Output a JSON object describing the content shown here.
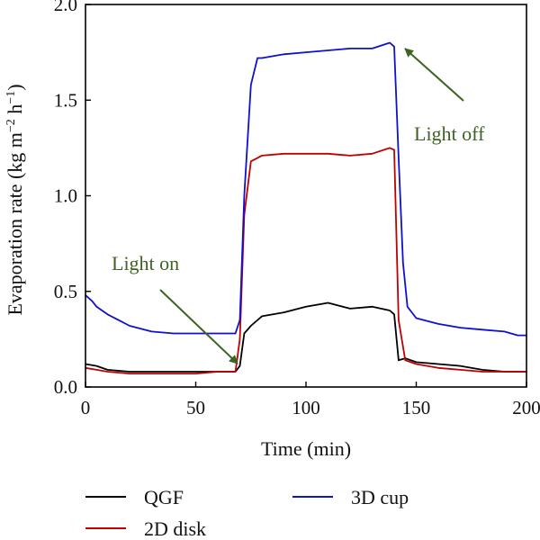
{
  "chart_data": {
    "type": "line",
    "title": "",
    "xlabel": "Time (min)",
    "ylabel": {
      "prefix": "Evaporation rate (kg m",
      "sup1": "−2",
      "mid": " h",
      "sup2": "−1",
      "suffix": ")"
    },
    "xlim": [
      0,
      200
    ],
    "ylim": [
      0.0,
      2.0
    ],
    "xticks": [
      0,
      50,
      100,
      150,
      200
    ],
    "yticks": [
      0.0,
      0.5,
      1.0,
      1.5,
      2.0
    ],
    "xtick_labels": [
      "0",
      "50",
      "100",
      "150",
      "200"
    ],
    "ytick_labels": [
      "0.0",
      "0.5",
      "1.0",
      "1.5",
      "2.0"
    ],
    "grid": false,
    "legend_position": "bottom",
    "annotations": [
      {
        "text": "Light on",
        "x": 70,
        "y": 0.09,
        "color": "#3c6423"
      },
      {
        "text": "Light off",
        "x": 143,
        "y": 1.79,
        "color": "#3c6423"
      }
    ],
    "series": [
      {
        "name": "QGF",
        "color": "#000000",
        "x": [
          0,
          5,
          10,
          20,
          30,
          40,
          50,
          60,
          68,
          70,
          72,
          75,
          80,
          90,
          100,
          110,
          120,
          130,
          138,
          140,
          142,
          145,
          150,
          160,
          170,
          180,
          190,
          200
        ],
        "y": [
          0.12,
          0.11,
          0.09,
          0.08,
          0.08,
          0.08,
          0.08,
          0.08,
          0.08,
          0.11,
          0.28,
          0.32,
          0.37,
          0.39,
          0.42,
          0.44,
          0.41,
          0.42,
          0.4,
          0.38,
          0.14,
          0.15,
          0.13,
          0.12,
          0.11,
          0.09,
          0.08,
          0.08
        ]
      },
      {
        "name": "2D disk",
        "color": "#c00000",
        "x": [
          0,
          5,
          10,
          20,
          30,
          40,
          50,
          60,
          68,
          70,
          72,
          75,
          80,
          90,
          100,
          110,
          120,
          130,
          138,
          140,
          142,
          145,
          150,
          160,
          170,
          180,
          190,
          200
        ],
        "y": [
          0.1,
          0.09,
          0.08,
          0.07,
          0.07,
          0.07,
          0.07,
          0.08,
          0.08,
          0.25,
          0.9,
          1.18,
          1.21,
          1.22,
          1.22,
          1.22,
          1.21,
          1.22,
          1.25,
          1.24,
          0.35,
          0.14,
          0.12,
          0.1,
          0.09,
          0.08,
          0.08,
          0.08
        ]
      },
      {
        "name": "3D cup",
        "color": "#1010d0",
        "x": [
          0,
          3,
          5,
          10,
          20,
          30,
          40,
          50,
          60,
          68,
          70,
          72,
          75,
          78,
          80,
          90,
          100,
          110,
          120,
          130,
          138,
          140,
          142,
          144,
          146,
          150,
          160,
          170,
          180,
          190,
          196,
          200
        ],
        "y": [
          0.48,
          0.45,
          0.42,
          0.38,
          0.32,
          0.29,
          0.28,
          0.28,
          0.28,
          0.28,
          0.35,
          1.0,
          1.58,
          1.72,
          1.72,
          1.74,
          1.75,
          1.76,
          1.77,
          1.77,
          1.8,
          1.78,
          1.2,
          0.65,
          0.42,
          0.36,
          0.33,
          0.31,
          0.3,
          0.29,
          0.27,
          0.27
        ]
      }
    ]
  }
}
